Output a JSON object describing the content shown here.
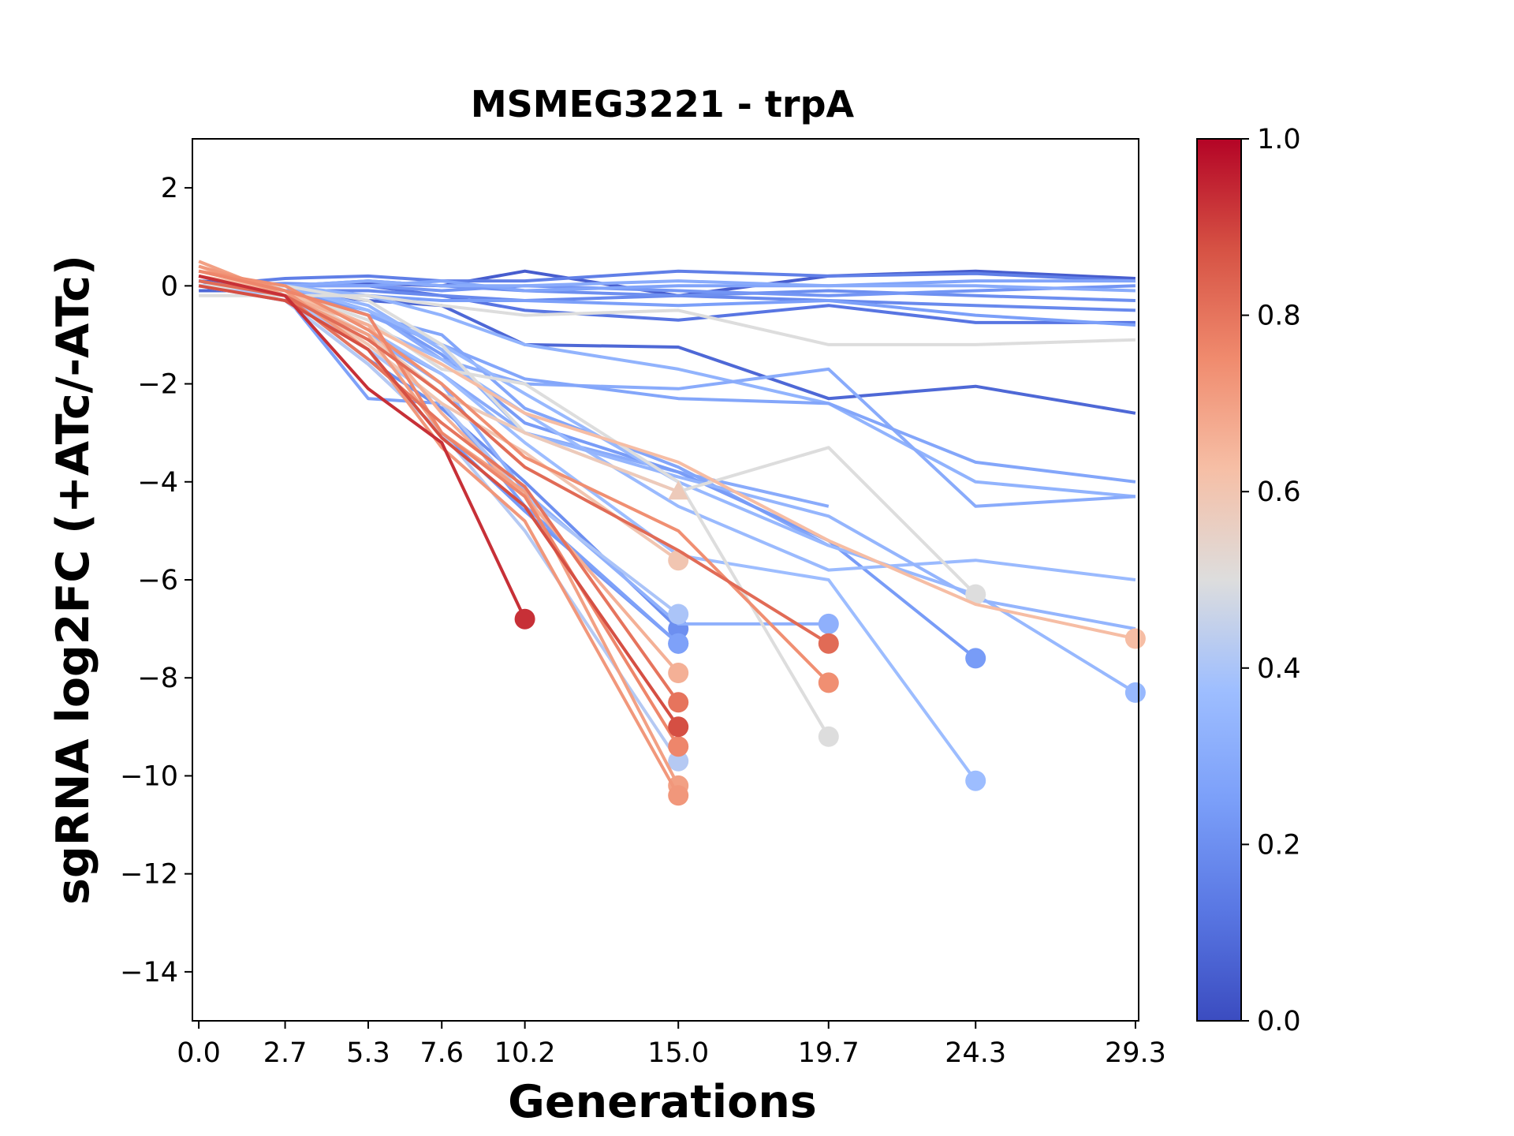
{
  "chart_data": {
    "type": "line",
    "title": "MSMEG3221 - trpA",
    "xlabel": "Generations",
    "ylabel": "sgRNA log2FC (+ATc/-ATc)",
    "x_ticks": [
      "0.0",
      "2.7",
      "5.3",
      "7.6",
      "10.2",
      "15.0",
      "19.7",
      "24.3",
      "29.3"
    ],
    "x_tick_values": [
      0.0,
      2.7,
      5.3,
      7.6,
      10.2,
      15.0,
      19.7,
      24.3,
      29.3
    ],
    "y_ticks": [
      "2",
      "0",
      "−2",
      "−4",
      "−6",
      "−8",
      "−10",
      "−12",
      "−14"
    ],
    "y_tick_values": [
      2,
      0,
      -2,
      -4,
      -6,
      -8,
      -10,
      -12,
      -14
    ],
    "xlim": [
      -0.2,
      29.4
    ],
    "ylim": [
      -15,
      3
    ],
    "grid": false,
    "colorbar": {
      "cmap": "coolwarm",
      "range": [
        0.0,
        1.0
      ],
      "ticks": [
        "0.0",
        "0.2",
        "0.4",
        "0.6",
        "0.8",
        "1.0"
      ],
      "tick_values": [
        0.0,
        0.2,
        0.4,
        0.6,
        0.8,
        1.0
      ]
    },
    "series": [
      {
        "c": 0.05,
        "x": [
          0,
          2.7,
          5.3,
          7.6,
          10.2,
          15.0,
          19.7,
          24.3,
          29.3
        ],
        "y": [
          0.1,
          0.0,
          0.05,
          0.0,
          0.3,
          -0.2,
          0.2,
          0.3,
          0.15
        ],
        "end_marker": "none"
      },
      {
        "c": 0.08,
        "x": [
          0,
          2.7,
          5.3,
          7.6,
          10.2,
          15.0,
          19.7,
          24.3,
          29.3
        ],
        "y": [
          -0.1,
          -0.1,
          -0.3,
          -0.4,
          -1.2,
          -1.25,
          -2.3,
          -2.05,
          -2.6
        ],
        "end_marker": "none"
      },
      {
        "c": 0.12,
        "x": [
          0,
          2.7,
          5.3,
          7.6,
          10.2,
          15.0,
          19.7,
          24.3,
          29.3
        ],
        "y": [
          0.0,
          0.0,
          0.0,
          -0.2,
          -0.5,
          -0.7,
          -0.4,
          -0.75,
          -0.75
        ],
        "end_marker": "none"
      },
      {
        "c": 0.15,
        "x": [
          0,
          2.7,
          5.3,
          7.6,
          10.2,
          15.0,
          19.7,
          24.3,
          29.3
        ],
        "y": [
          0.0,
          0.15,
          0.2,
          0.1,
          0.1,
          0.3,
          0.2,
          0.25,
          0.1
        ],
        "end_marker": "none"
      },
      {
        "c": 0.18,
        "x": [
          0,
          2.7,
          5.3,
          7.6,
          10.2,
          15.0,
          19.7,
          24.3,
          29.3
        ],
        "y": [
          0.0,
          -0.1,
          -0.1,
          -0.2,
          -0.3,
          -0.2,
          -0.3,
          -0.4,
          -0.5
        ],
        "end_marker": "none"
      },
      {
        "c": 0.2,
        "x": [
          0,
          2.7,
          5.3,
          7.6,
          10.2,
          15.0,
          19.7,
          24.3,
          29.3
        ],
        "y": [
          0.0,
          0.0,
          0.1,
          0.0,
          -0.1,
          -0.2,
          -0.1,
          -0.2,
          -0.3
        ],
        "end_marker": "none"
      },
      {
        "c": 0.22,
        "x": [
          0,
          2.7,
          5.3,
          7.6,
          10.2,
          15.0,
          19.7,
          24.3,
          29.3
        ],
        "y": [
          0.0,
          0.05,
          0.0,
          -0.1,
          0.0,
          -0.1,
          -0.2,
          -0.1,
          0.0
        ],
        "end_marker": "none"
      },
      {
        "c": 0.25,
        "x": [
          0,
          2.7,
          5.3,
          7.6,
          10.2,
          15.0,
          19.7,
          24.3,
          29.3
        ],
        "y": [
          0.0,
          -0.1,
          -0.2,
          -0.3,
          -0.3,
          -0.4,
          -0.3,
          -0.6,
          -0.8
        ],
        "end_marker": "none"
      },
      {
        "c": 0.27,
        "x": [
          0,
          2.7,
          5.3,
          7.6,
          10.2,
          15.0,
          19.7,
          24.3,
          29.3
        ],
        "y": [
          0.0,
          0.0,
          0.0,
          0.1,
          -0.1,
          0.0,
          0.0,
          0.1,
          0.1
        ],
        "end_marker": "none"
      },
      {
        "c": 0.3,
        "x": [
          0,
          2.7,
          5.3,
          7.6,
          10.2,
          15.0,
          19.7,
          24.3,
          29.3
        ],
        "y": [
          0.0,
          0.0,
          0.1,
          0.0,
          0.0,
          0.1,
          0.0,
          0.0,
          -0.1
        ],
        "end_marker": "none"
      },
      {
        "c": 0.2,
        "x": [
          0,
          2.7,
          5.3,
          7.6,
          10.2,
          15.0
        ],
        "y": [
          0.1,
          -0.2,
          -1.5,
          -2.5,
          -4.0,
          -7.0
        ],
        "end_marker": "circle"
      },
      {
        "c": 0.23,
        "x": [
          0,
          2.7,
          5.3,
          7.6,
          10.2,
          15.0
        ],
        "y": [
          0.0,
          -0.3,
          -1.6,
          -3.0,
          -4.6,
          -7.3
        ],
        "end_marker": "circle"
      },
      {
        "c": 0.3,
        "x": [
          0,
          2.7,
          5.3,
          7.6,
          10.2,
          15.0,
          19.7
        ],
        "y": [
          0.0,
          -0.1,
          -1.0,
          -1.8,
          -3.0,
          -3.8,
          -4.5
        ],
        "end_marker": "none"
      },
      {
        "c": 0.28,
        "x": [
          0,
          2.7,
          5.3,
          7.6,
          10.2,
          15.0,
          19.7
        ],
        "y": [
          0.0,
          0.0,
          -0.6,
          -1.0,
          -2.5,
          -3.7,
          -5.3
        ],
        "end_marker": "none"
      },
      {
        "c": 0.32,
        "x": [
          0,
          2.7,
          5.3,
          7.6,
          10.2,
          15.0,
          19.7
        ],
        "y": [
          0.0,
          -0.2,
          -1.0,
          -2.0,
          -4.2,
          -6.9,
          -6.9
        ],
        "end_marker": "circle"
      },
      {
        "c": 0.24,
        "x": [
          0,
          2.7,
          5.3,
          7.6,
          10.2,
          15.0,
          19.7,
          24.3
        ],
        "y": [
          0.0,
          -0.1,
          -0.5,
          -1.4,
          -2.8,
          -3.8,
          -5.2,
          -7.6
        ],
        "end_marker": "circle"
      },
      {
        "c": 0.33,
        "x": [
          0,
          2.7,
          5.3,
          7.6,
          10.2,
          15.0,
          19.7,
          24.3,
          29.3
        ],
        "y": [
          0.0,
          0.0,
          -0.2,
          -0.6,
          -1.2,
          -1.7,
          -2.4,
          -4.0,
          -4.3
        ],
        "end_marker": "none"
      },
      {
        "c": 0.3,
        "x": [
          0,
          2.7,
          5.3,
          7.6,
          10.2,
          15.0,
          19.7,
          24.3,
          29.3
        ],
        "y": [
          0.0,
          0.0,
          -0.5,
          -1.5,
          -2.0,
          -2.1,
          -1.7,
          -4.5,
          -4.3
        ],
        "end_marker": "none"
      },
      {
        "c": 0.28,
        "x": [
          0,
          2.7,
          5.3,
          7.6,
          10.2,
          15.0,
          19.7,
          24.3,
          29.3
        ],
        "y": [
          0.0,
          -0.1,
          -0.6,
          -1.2,
          -1.9,
          -2.3,
          -2.4,
          -3.6,
          -4.0
        ],
        "end_marker": "none"
      },
      {
        "c": 0.35,
        "x": [
          0,
          2.7,
          5.3,
          7.6,
          10.2,
          15.0,
          19.7,
          24.3,
          29.3
        ],
        "y": [
          0.0,
          0.0,
          -0.5,
          -1.2,
          -2.2,
          -4.0,
          -5.3,
          -6.3,
          -8.3
        ],
        "end_marker": "circle"
      },
      {
        "c": 0.36,
        "x": [
          0,
          2.7,
          5.3,
          7.6,
          10.2,
          15.0,
          19.7,
          24.3,
          29.3
        ],
        "y": [
          0.0,
          -0.1,
          -0.8,
          -1.5,
          -2.6,
          -4.5,
          -5.8,
          -5.6,
          -6.0
        ],
        "end_marker": "none"
      },
      {
        "c": 0.34,
        "x": [
          0,
          2.7,
          5.3,
          7.6,
          10.2,
          15.0,
          19.7,
          24.3,
          29.3
        ],
        "y": [
          0.0,
          0.0,
          -0.4,
          -1.3,
          -3.0,
          -3.9,
          -4.7,
          -6.4,
          -7.0
        ],
        "end_marker": "none"
      },
      {
        "c": 0.37,
        "x": [
          0,
          2.7,
          5.3,
          7.6,
          10.2,
          15.0,
          19.7,
          24.3
        ],
        "y": [
          0.0,
          0.0,
          -0.9,
          -1.8,
          -3.2,
          -5.5,
          -6.0,
          -10.1
        ],
        "end_marker": "circle"
      },
      {
        "c": 0.26,
        "x": [
          0,
          2.7,
          5.3,
          7.6,
          10.2,
          15.0
        ],
        "y": [
          0.1,
          -0.2,
          -2.3,
          -2.4,
          -4.5,
          -7.3
        ],
        "end_marker": "circle"
      },
      {
        "c": 0.4,
        "x": [
          0,
          2.7,
          5.3,
          7.6,
          10.2,
          15.0
        ],
        "y": [
          0.0,
          -0.2,
          -1.3,
          -2.4,
          -4.3,
          -6.7
        ],
        "end_marker": "circle"
      },
      {
        "c": 0.42,
        "x": [
          0,
          2.7,
          5.3,
          7.6,
          10.2,
          15.0
        ],
        "y": [
          0.0,
          -0.3,
          -1.6,
          -3.0,
          -5.0,
          -9.7
        ],
        "end_marker": "circle"
      },
      {
        "c": 0.5,
        "x": [
          0,
          2.7,
          5.3,
          7.6,
          10.2,
          15.0,
          19.7,
          24.3,
          29.3
        ],
        "y": [
          -0.2,
          -0.2,
          -0.2,
          -0.4,
          -0.6,
          -0.5,
          -1.2,
          -1.2,
          -1.1
        ],
        "end_marker": "none"
      },
      {
        "c": 0.5,
        "x": [
          0,
          2.7,
          5.3,
          7.6,
          10.2,
          15.0,
          19.7,
          24.3
        ],
        "y": [
          0.0,
          0.0,
          -0.3,
          -1.2,
          -3.0,
          -4.2,
          -3.3,
          -6.3
        ],
        "end_marker": "circle"
      },
      {
        "c": 0.5,
        "x": [
          0,
          2.7,
          5.3,
          7.6,
          10.2,
          15.0,
          19.7
        ],
        "y": [
          0.0,
          -0.1,
          -0.7,
          -1.7,
          -2.0,
          -4.0,
          -9.2
        ],
        "end_marker": "circle"
      },
      {
        "c": 0.58,
        "x": [
          0,
          2.7,
          5.3,
          7.6,
          10.2,
          15.0
        ],
        "y": [
          0.3,
          -0.1,
          -1.0,
          -2.2,
          -3.0,
          -4.2
        ],
        "end_marker": "triangle"
      },
      {
        "c": 0.6,
        "x": [
          0,
          2.7,
          5.3,
          7.6,
          10.2,
          15.0
        ],
        "y": [
          0.2,
          -0.1,
          -1.2,
          -2.4,
          -3.4,
          -5.6
        ],
        "end_marker": "circle"
      },
      {
        "c": 0.63,
        "x": [
          0,
          2.7,
          5.3,
          7.6,
          10.2,
          15.0,
          19.7,
          24.3,
          29.3
        ],
        "y": [
          0.2,
          -0.1,
          -0.8,
          -1.6,
          -2.6,
          -3.6,
          -5.2,
          -6.5,
          -7.2
        ],
        "end_marker": "circle"
      },
      {
        "c": 0.66,
        "x": [
          0,
          2.7,
          5.3,
          7.6,
          10.2,
          15.0
        ],
        "y": [
          0.4,
          -0.2,
          -0.8,
          -2.6,
          -4.3,
          -7.9
        ],
        "end_marker": "circle"
      },
      {
        "c": 0.7,
        "x": [
          0,
          2.7,
          5.3,
          7.6,
          10.2,
          15.0
        ],
        "y": [
          0.5,
          -0.2,
          -1.0,
          -3.0,
          -4.2,
          -10.2
        ],
        "end_marker": "circle"
      },
      {
        "c": 0.72,
        "x": [
          0,
          2.7,
          5.3,
          7.6,
          10.2,
          15.0
        ],
        "y": [
          0.4,
          -0.1,
          -1.3,
          -3.3,
          -4.8,
          -10.4
        ],
        "end_marker": "circle"
      },
      {
        "c": 0.74,
        "x": [
          0,
          2.7,
          5.3,
          7.6,
          10.2,
          15.0,
          19.7
        ],
        "y": [
          0.3,
          0.0,
          -0.9,
          -2.0,
          -3.5,
          -5.0,
          -8.1
        ],
        "end_marker": "circle"
      },
      {
        "c": 0.76,
        "x": [
          0,
          2.7,
          5.3,
          7.6,
          10.2,
          15.0
        ],
        "y": [
          0.3,
          -0.1,
          -0.6,
          -3.0,
          -4.3,
          -9.4
        ],
        "end_marker": "circle"
      },
      {
        "c": 0.8,
        "x": [
          0,
          2.7,
          5.3,
          7.6,
          10.2,
          15.0
        ],
        "y": [
          0.2,
          -0.2,
          -1.5,
          -2.8,
          -4.1,
          -8.5
        ],
        "end_marker": "circle"
      },
      {
        "c": 0.82,
        "x": [
          0,
          2.7,
          5.3,
          7.6,
          10.2,
          15.0,
          19.7
        ],
        "y": [
          0.1,
          -0.2,
          -1.1,
          -2.2,
          -3.7,
          -5.4,
          -7.3
        ],
        "end_marker": "circle"
      },
      {
        "c": 0.88,
        "x": [
          0,
          2.7,
          5.3,
          7.6,
          10.2,
          15.0
        ],
        "y": [
          0.0,
          -0.3,
          -1.3,
          -3.1,
          -4.5,
          -9.0
        ],
        "end_marker": "circle"
      },
      {
        "c": 0.93,
        "x": [
          0,
          2.7,
          5.3,
          7.6,
          10.2
        ],
        "y": [
          0.2,
          -0.2,
          -2.1,
          -3.2,
          -6.8
        ],
        "end_marker": "circle"
      }
    ]
  }
}
